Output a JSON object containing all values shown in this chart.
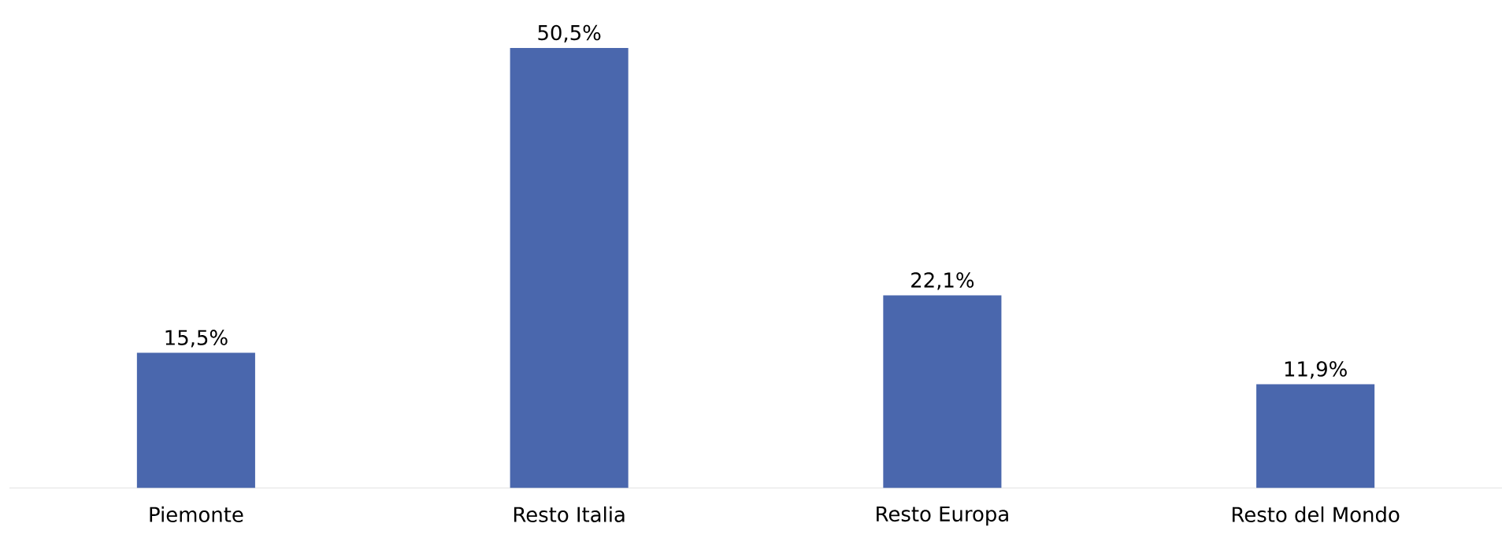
{
  "chart_data": {
    "type": "bar",
    "categories": [
      "Piemonte",
      "Resto Italia",
      "Resto Europa",
      "Resto del Mondo"
    ],
    "values": [
      15.5,
      50.5,
      22.1,
      11.9
    ],
    "value_labels": [
      "15,5%",
      "50,5%",
      "22,1%",
      "11,9%"
    ],
    "color": "#4a67ad"
  }
}
